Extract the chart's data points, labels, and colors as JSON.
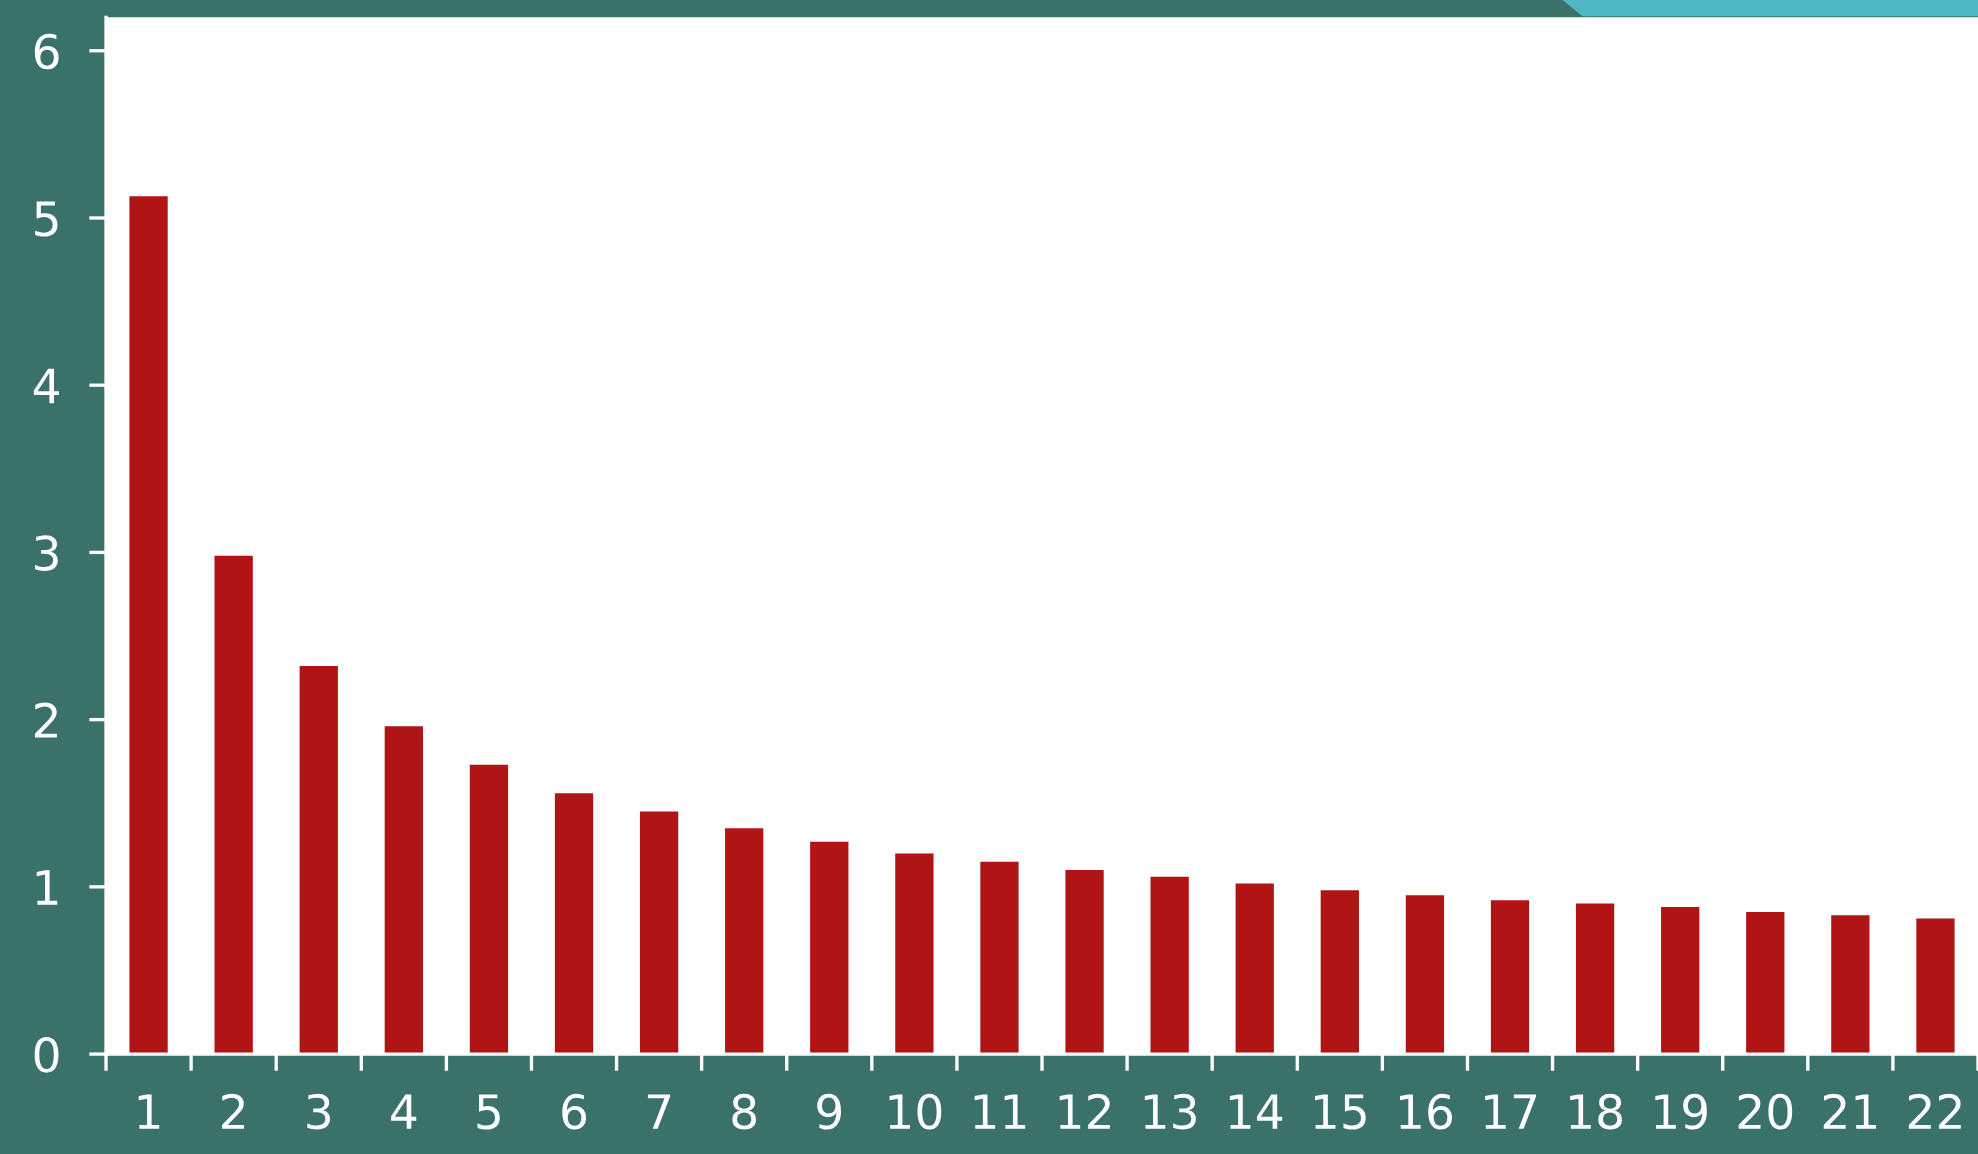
{
  "chart_data": {
    "type": "bar",
    "categories": [
      "1",
      "2",
      "3",
      "4",
      "5",
      "6",
      "7",
      "8",
      "9",
      "10",
      "11",
      "12",
      "13",
      "14",
      "15",
      "16",
      "17",
      "18",
      "19",
      "20",
      "21",
      "22"
    ],
    "values": [
      5.13,
      2.98,
      2.32,
      1.96,
      1.73,
      1.56,
      1.45,
      1.35,
      1.27,
      1.2,
      1.15,
      1.1,
      1.06,
      1.02,
      0.98,
      0.95,
      0.92,
      0.9,
      0.88,
      0.85,
      0.83,
      0.81
    ],
    "color": "#b01414",
    "ylim": [
      0,
      6.2
    ],
    "yticks": [
      0,
      1,
      2,
      3,
      4,
      5,
      6
    ],
    "grid": false
  }
}
